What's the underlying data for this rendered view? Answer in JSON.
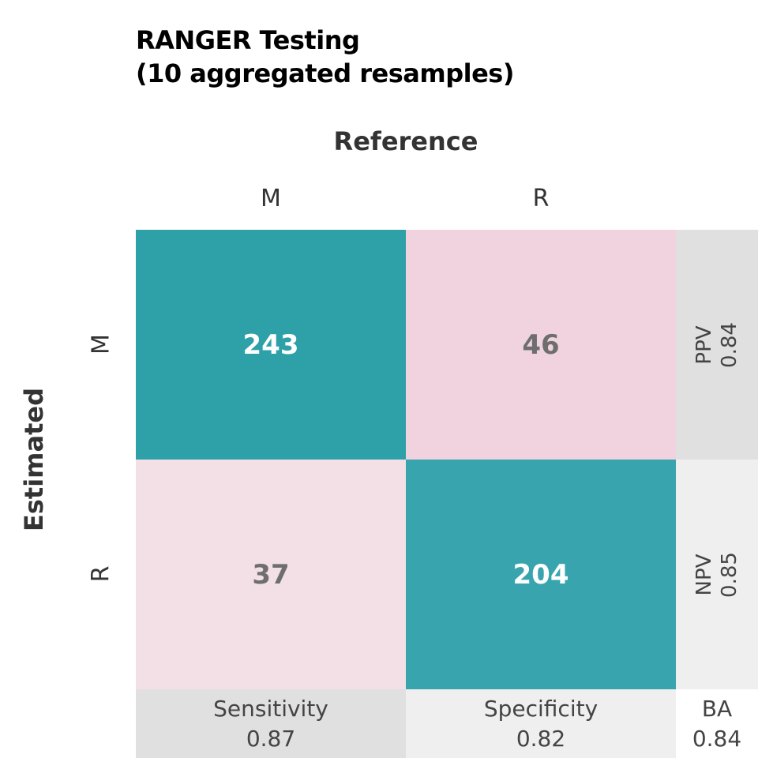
{
  "chart_data": {
    "type": "heatmap",
    "title": [
      "RANGER Testing",
      "(10 aggregated resamples)"
    ],
    "xlabel": "Reference",
    "ylabel": "Estimated",
    "columns": [
      "M",
      "R"
    ],
    "rows": [
      "M",
      "R"
    ],
    "matrix": [
      [
        243,
        46
      ],
      [
        37,
        204
      ]
    ],
    "row_metrics": [
      {
        "label": "PPV",
        "value": "0.84"
      },
      {
        "label": "NPV",
        "value": "0.85"
      }
    ],
    "column_metrics": [
      {
        "label": "Sensitivity",
        "value": "0.87"
      },
      {
        "label": "Specificity",
        "value": "0.82"
      }
    ],
    "overall_metric": {
      "label": "BA",
      "value": "0.84"
    }
  },
  "colors": {
    "correct_high": "#2ea0a8",
    "correct_low": "#38a5ae",
    "error_high": "#f0d3de",
    "error_low": "#f3e0e7",
    "correct_text": "#ffffff",
    "error_text": "#6e6e6e",
    "metric_dark": "#e0e0e0",
    "metric_light": "#efefef",
    "metric_white": "#ffffff"
  }
}
